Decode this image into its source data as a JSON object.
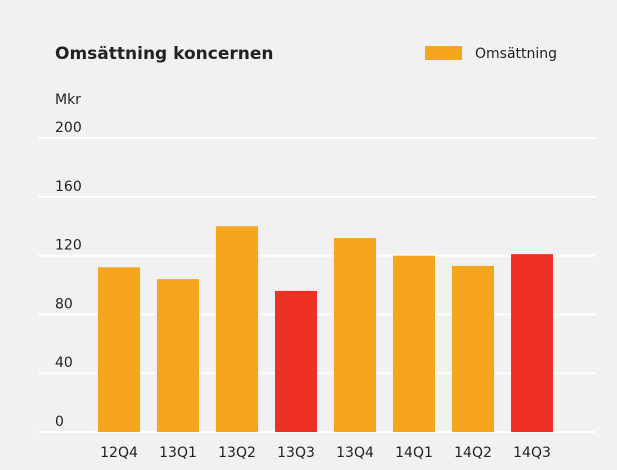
{
  "chart_data": {
    "type": "bar",
    "title": "Omsättning koncernen",
    "y_label": "Mkr",
    "categories": [
      "12Q4",
      "13Q1",
      "13Q2",
      "13Q3",
      "13Q4",
      "14Q1",
      "14Q2",
      "14Q3"
    ],
    "series": [
      {
        "name": "Omsättning",
        "color": "#f6a51f",
        "values": [
          112,
          104,
          140,
          96,
          132,
          120,
          113,
          121
        ]
      }
    ],
    "bar_colors": [
      "#f6a51f",
      "#f6a51f",
      "#f6a51f",
      "#ee3124",
      "#f6a51f",
      "#f6a51f",
      "#f6a51f",
      "#ee3124"
    ],
    "ylim": [
      0,
      200
    ],
    "yticks": [
      0,
      40,
      80,
      120,
      160,
      200
    ],
    "grid": true,
    "legend": "top-right"
  }
}
